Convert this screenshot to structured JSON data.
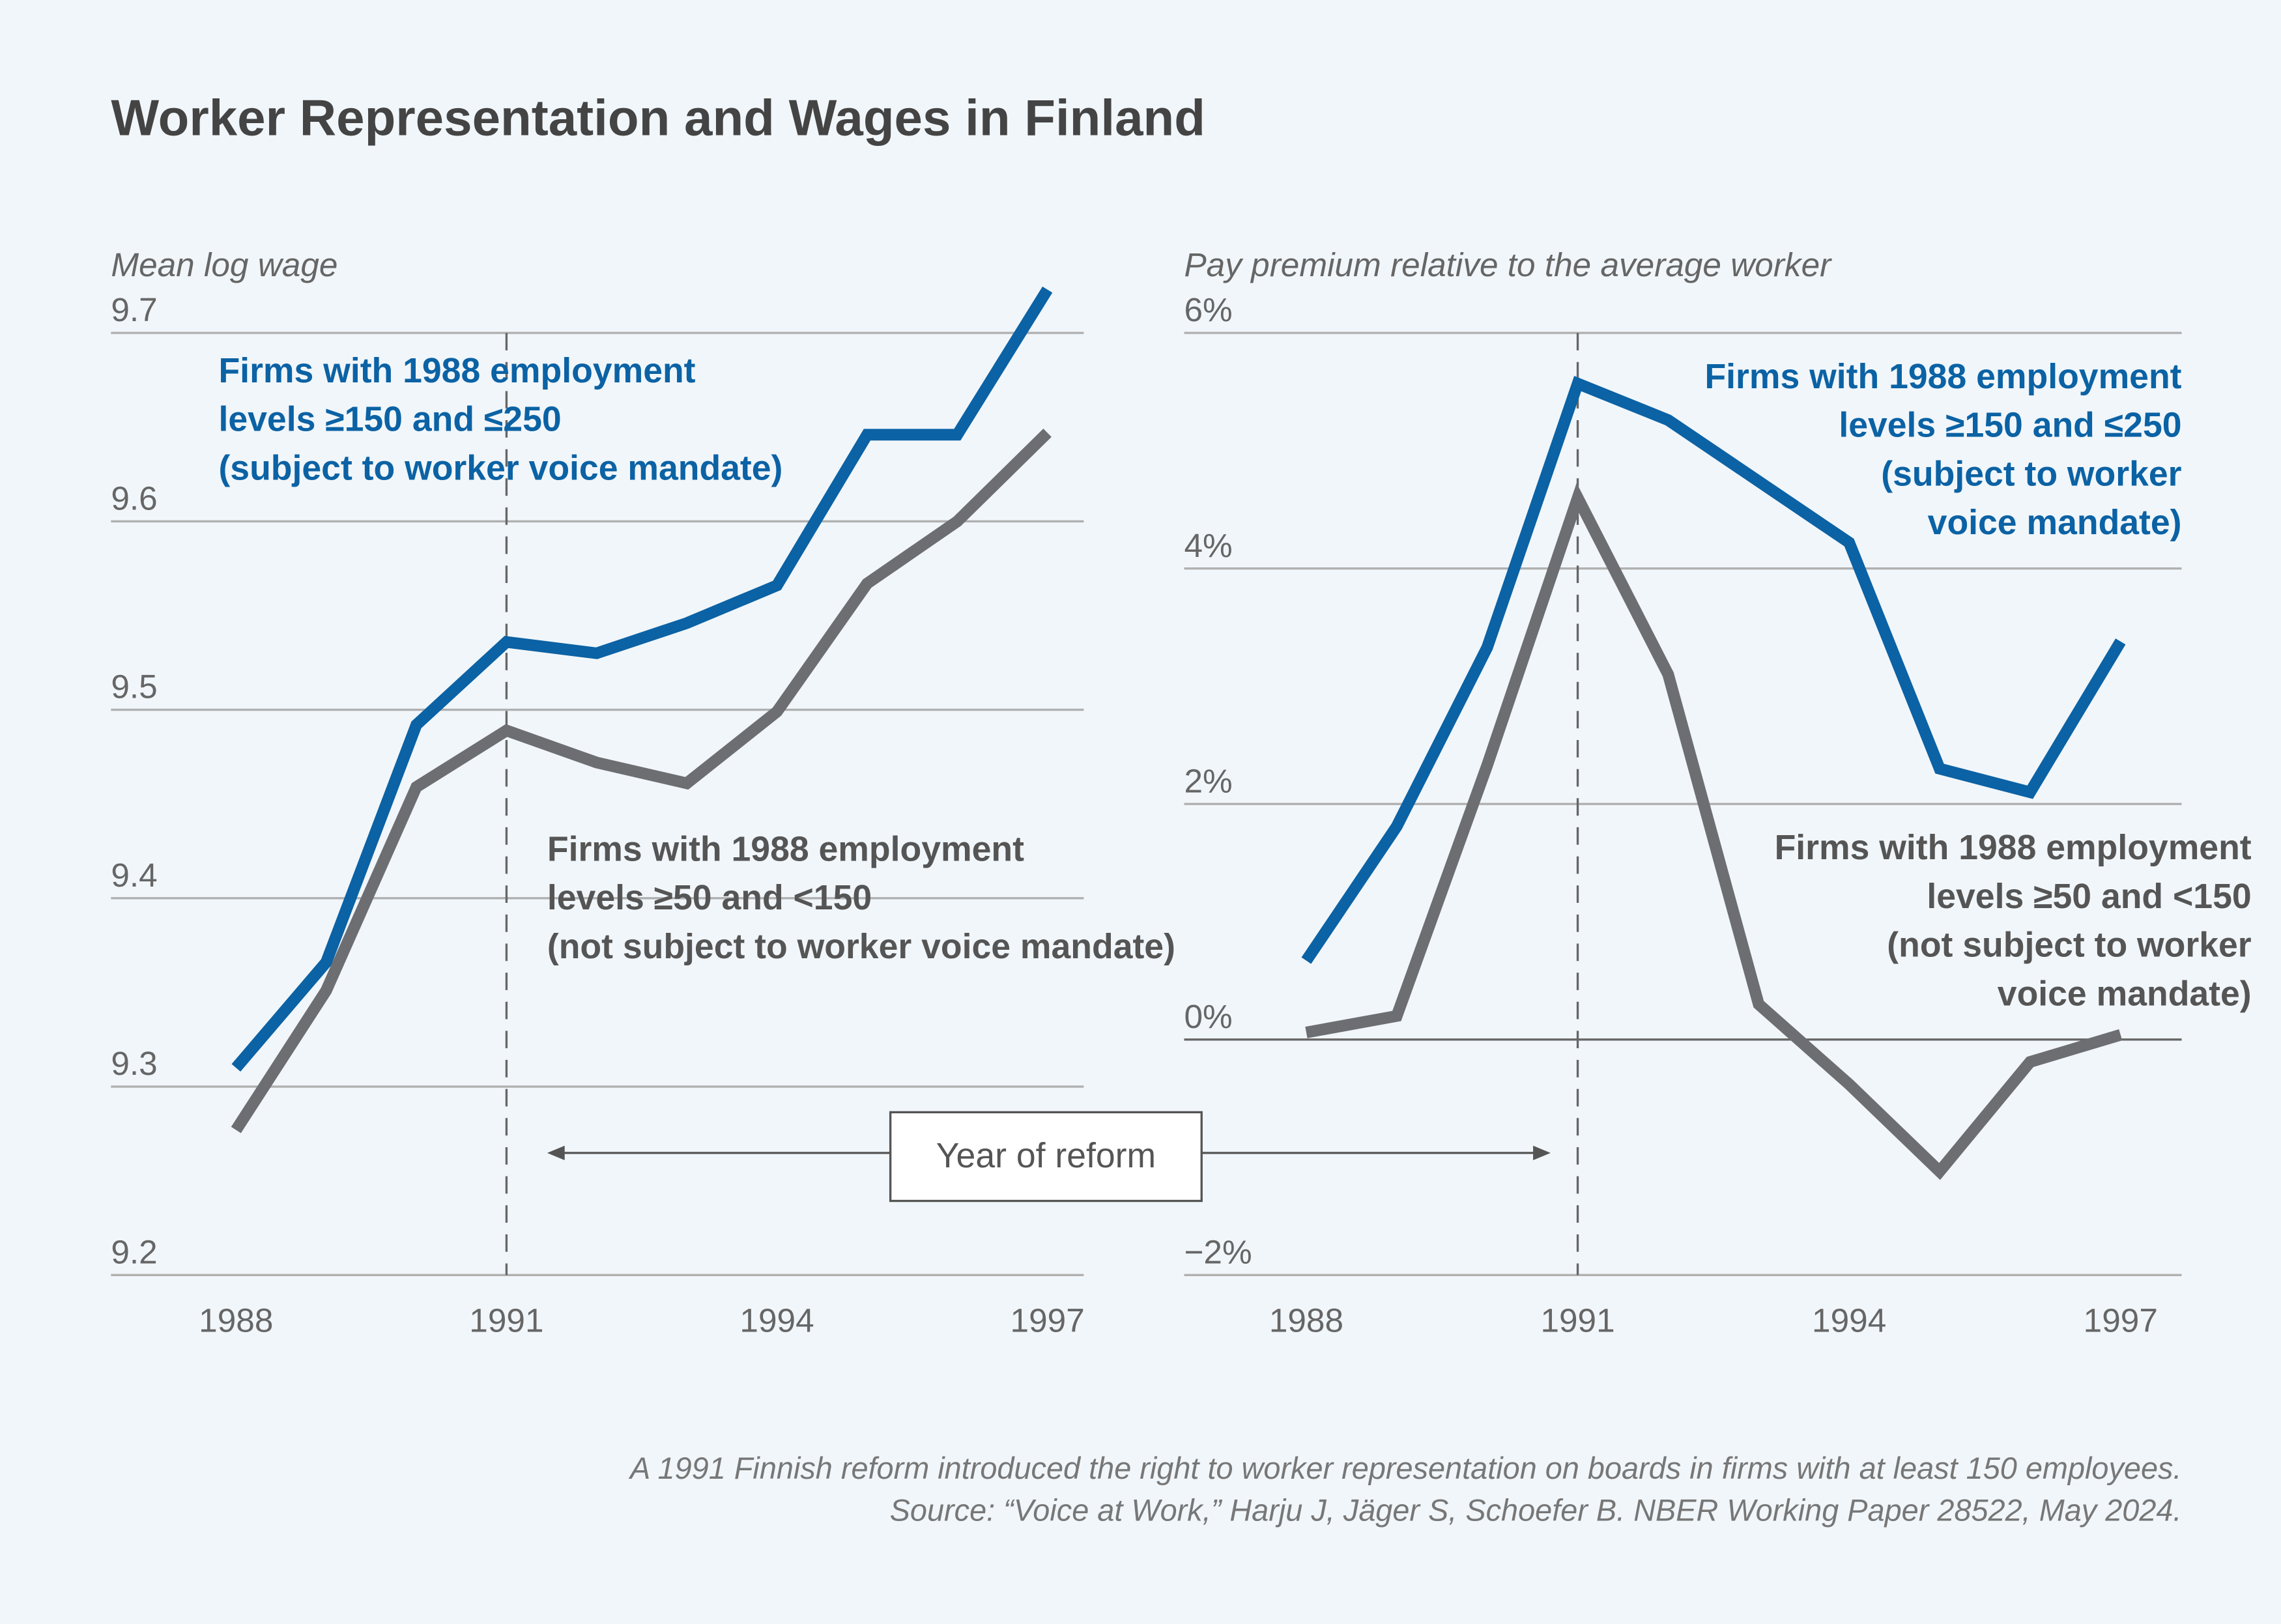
{
  "title": "Worker Representation and Wages in Finland",
  "colors": {
    "blue": "#0b62a4",
    "gray": "#6d6e71",
    "background": "#f1f6fa"
  },
  "annotation": "Year of reform",
  "footnote": [
    "A 1991 Finnish reform introduced the right to worker representation on boards in firms with at least 150 employees.",
    "Source: “Voice at Work,” Harju J, Jäger S, Schoefer B. NBER Working Paper 28522, May 2024."
  ],
  "chart_data": [
    {
      "type": "line",
      "ylabel": "Mean log wage",
      "ylim": [
        9.2,
        9.7
      ],
      "yticks": [
        "9.7",
        "9.6",
        "9.5",
        "9.4",
        "9.3",
        "9.2"
      ],
      "xticks": [
        "1988",
        "1991",
        "1994",
        "1997"
      ],
      "reference_line_x": 1991,
      "x": [
        1988,
        1989,
        1990,
        1991,
        1992,
        1993,
        1994,
        1995,
        1996,
        1997
      ],
      "series": [
        {
          "name": [
            "Firms with 1988 employment",
            "levels ≥150 and ≤250",
            "(subject to worker voice mandate)"
          ],
          "color": "#0b62a4",
          "values": [
            9.31,
            9.366,
            9.492,
            9.536,
            9.53,
            9.546,
            9.566,
            9.646,
            9.646,
            9.723
          ]
        },
        {
          "name": [
            "Firms with 1988 employment",
            "levels ≥50 and <150",
            "(not subject to worker voice mandate)"
          ],
          "color": "#6d6e71",
          "values": [
            9.277,
            9.351,
            9.459,
            9.489,
            9.472,
            9.461,
            9.499,
            9.567,
            9.6,
            9.647
          ]
        }
      ]
    },
    {
      "type": "line",
      "ylabel": "Pay premium relative to the average worker",
      "ylim": [
        -2,
        6
      ],
      "yticks": [
        "6%",
        "4%",
        "2%",
        "0%",
        "−2%"
      ],
      "xticks": [
        "1988",
        "1991",
        "1994",
        "1997"
      ],
      "reference_line_x": 1991,
      "x": [
        1988,
        1989,
        1990,
        1991,
        1992,
        1993,
        1994,
        1995,
        1996,
        1997
      ],
      "series": [
        {
          "name": [
            "Firms with 1988 employment",
            "levels ≥150 and ≤250",
            "(subject to worker",
            "voice mandate)"
          ],
          "color": "#0b62a4",
          "values": [
            0.67,
            1.81,
            3.33,
            5.57,
            5.26,
            4.74,
            4.22,
            2.3,
            2.1,
            3.38
          ]
        },
        {
          "name": [
            "Firms with 1988 employment",
            "levels ≥50 and <150",
            "(not subject to worker",
            "voice mandate)"
          ],
          "color": "#6d6e71",
          "values": [
            0.06,
            0.2,
            2.33,
            4.6,
            3.1,
            0.3,
            -0.38,
            -1.12,
            -0.19,
            0.04
          ]
        }
      ]
    }
  ]
}
